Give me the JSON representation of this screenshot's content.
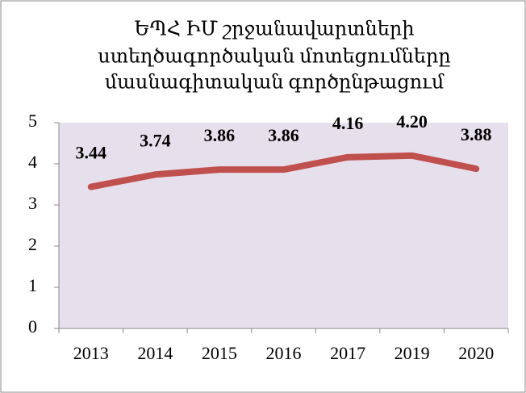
{
  "chart_data": {
    "type": "line",
    "title": [
      "ԵՊՀ ԻՄ շրջանավարտների",
      "ստեղծագործական մոտեցումները",
      "մասնագիտական գործընթացում"
    ],
    "categories": [
      "2013",
      "2014",
      "2015",
      "2016",
      "2017",
      "2019",
      "2020"
    ],
    "values": [
      3.44,
      3.74,
      3.86,
      3.86,
      4.16,
      4.2,
      3.88
    ],
    "value_labels": [
      "3.44",
      "3.74",
      "3.86",
      "3.86",
      "4.16",
      "4.20",
      "3.88"
    ],
    "color": "#c0504d",
    "ylim": [
      0,
      5
    ],
    "yticks": [
      0,
      1,
      2,
      3,
      4,
      5
    ]
  }
}
